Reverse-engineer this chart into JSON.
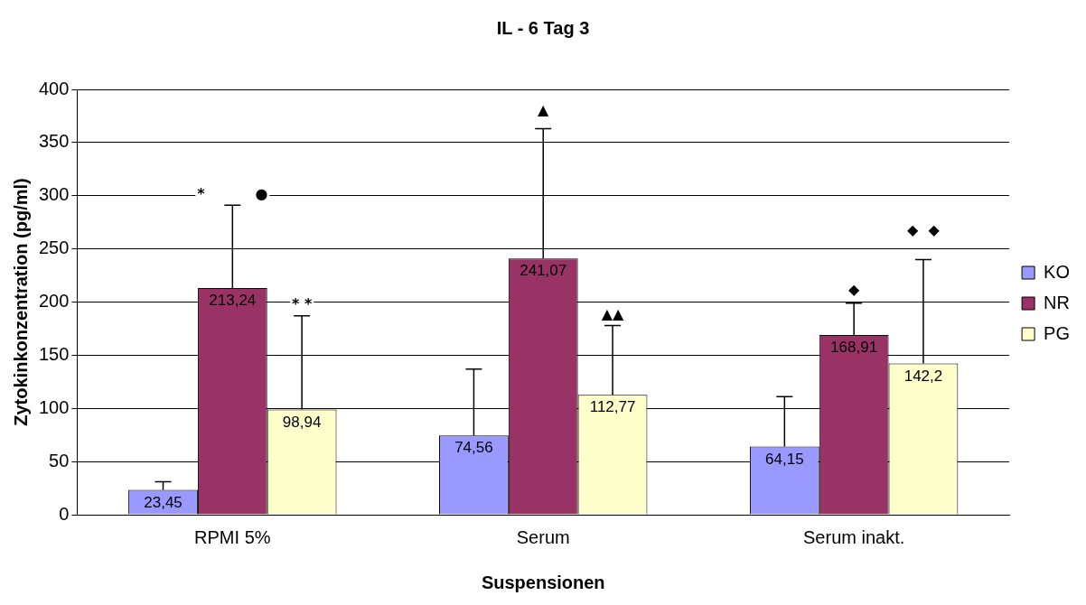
{
  "chart_data": {
    "type": "bar",
    "title": "IL - 6 Tag 3",
    "xlabel": "Suspensionen",
    "ylabel": "Zytokinkonzentration (pg/ml)",
    "categories": [
      "RPMI 5%",
      "Serum",
      "Serum inakt."
    ],
    "series": [
      {
        "name": "KO",
        "color": "#9999ff",
        "values": [
          23.45,
          74.56,
          64.15
        ],
        "value_labels": [
          "23,45",
          "74,56",
          "64,15"
        ],
        "errors": [
          [
            23.45,
            31
          ],
          [
            74.56,
            137
          ],
          [
            64.15,
            111
          ]
        ]
      },
      {
        "name": "NR",
        "color": "#993366",
        "values": [
          213.24,
          241.07,
          168.91
        ],
        "value_labels": [
          "213,24",
          "241,07",
          "168,91"
        ],
        "errors": [
          [
            213.24,
            291
          ],
          [
            241.07,
            363
          ],
          [
            168.91,
            199
          ]
        ]
      },
      {
        "name": "PG",
        "color": "#ffffcc",
        "values": [
          98.94,
          112.77,
          142.2
        ],
        "value_labels": [
          "98,94",
          "112,77",
          "142,2"
        ],
        "errors": [
          [
            98.94,
            187
          ],
          [
            112.77,
            178
          ],
          [
            142.2,
            240
          ]
        ]
      }
    ],
    "ylim": [
      0,
      400
    ],
    "yticks": [
      0,
      50,
      100,
      150,
      200,
      250,
      300,
      350,
      400
    ],
    "grid": "y",
    "legend": "right",
    "annotations": [
      "*          ●",
      "* *",
      "▲",
      "▲▲",
      "◆",
      "◆  ◆"
    ]
  }
}
